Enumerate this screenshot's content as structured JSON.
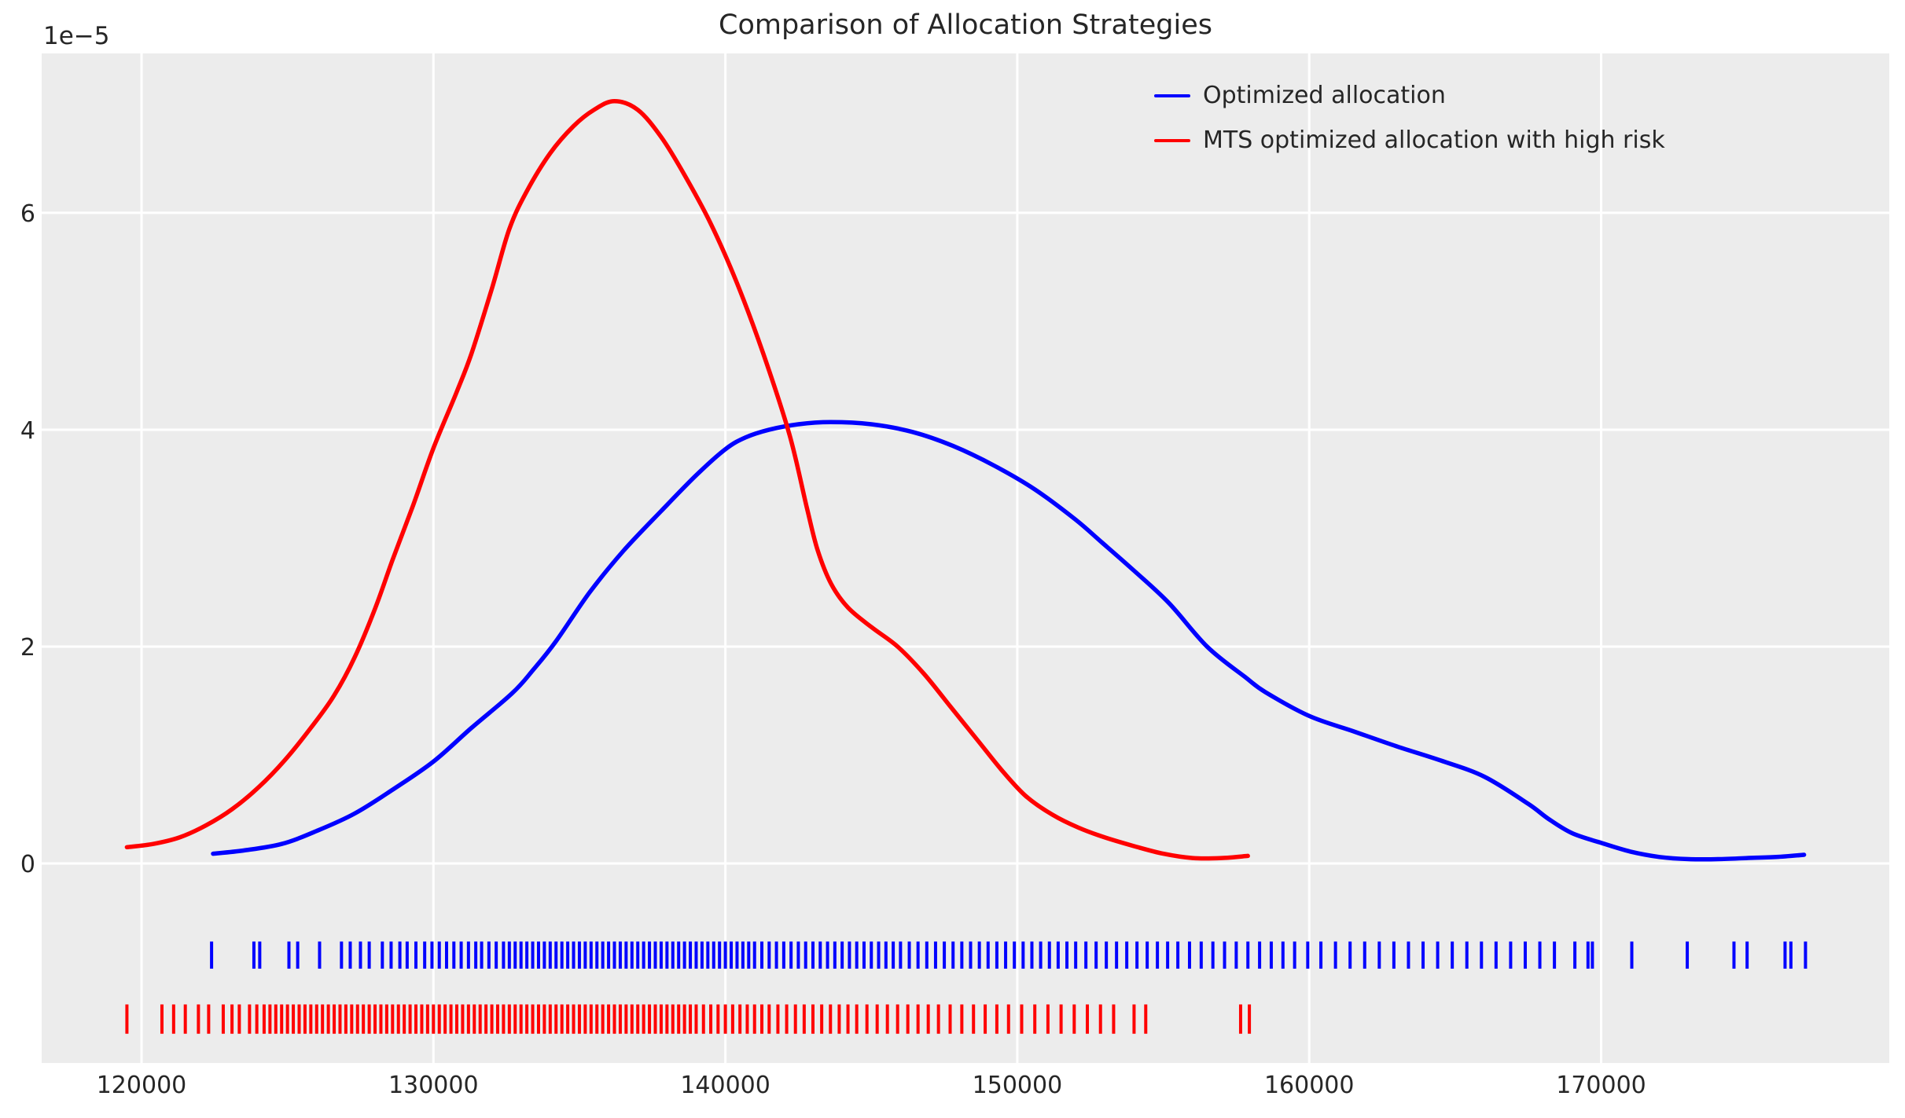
{
  "figure": {
    "background": "#ffffff",
    "plot_background": "#ececec",
    "grid_color": "#ffffff",
    "text_color": "#262626"
  },
  "chart_data": {
    "type": "line",
    "subtype": "kde-with-rug",
    "title": "Comparison of Allocation Strategies",
    "xlabel": "",
    "ylabel": "",
    "y_offset_text": "1e−5",
    "y_unit": "1e-5",
    "grid": true,
    "legend_position": "upper right",
    "x_ticks": [
      120000,
      130000,
      140000,
      150000,
      160000,
      170000
    ],
    "y_ticks": [
      0,
      2,
      4,
      6
    ],
    "x_range": [
      116580,
      179870
    ],
    "y_range_1e5": [
      -1.84,
      7.47
    ],
    "series": [
      {
        "name": "Optimized allocation",
        "color": "#0000ff",
        "points": [
          [
            122450,
            0.09
          ],
          [
            123500,
            0.12
          ],
          [
            124800,
            0.18
          ],
          [
            126000,
            0.3
          ],
          [
            127300,
            0.46
          ],
          [
            128600,
            0.68
          ],
          [
            130000,
            0.94
          ],
          [
            131300,
            1.25
          ],
          [
            132700,
            1.57
          ],
          [
            133400,
            1.78
          ],
          [
            134200,
            2.05
          ],
          [
            135350,
            2.5
          ],
          [
            136500,
            2.88
          ],
          [
            137800,
            3.25
          ],
          [
            139000,
            3.58
          ],
          [
            140000,
            3.82
          ],
          [
            140700,
            3.93
          ],
          [
            141500,
            4.0
          ],
          [
            142500,
            4.05
          ],
          [
            143600,
            4.07
          ],
          [
            145000,
            4.05
          ],
          [
            146400,
            3.98
          ],
          [
            147800,
            3.85
          ],
          [
            149200,
            3.67
          ],
          [
            150600,
            3.45
          ],
          [
            152000,
            3.17
          ],
          [
            152900,
            2.96
          ],
          [
            154000,
            2.7
          ],
          [
            155200,
            2.4
          ],
          [
            156500,
            2.0
          ],
          [
            157800,
            1.72
          ],
          [
            158500,
            1.58
          ],
          [
            160000,
            1.36
          ],
          [
            161500,
            1.22
          ],
          [
            163000,
            1.08
          ],
          [
            164500,
            0.95
          ],
          [
            166000,
            0.8
          ],
          [
            167500,
            0.55
          ],
          [
            168200,
            0.41
          ],
          [
            169000,
            0.28
          ],
          [
            170000,
            0.19
          ],
          [
            171000,
            0.11
          ],
          [
            172000,
            0.06
          ],
          [
            173000,
            0.04
          ],
          [
            174000,
            0.04
          ],
          [
            175000,
            0.05
          ],
          [
            176000,
            0.06
          ],
          [
            176950,
            0.08
          ]
        ],
        "rug_band_1e5": [
          -0.72,
          -0.97
        ],
        "rug": [
          122400,
          123850,
          124050,
          125050,
          125350,
          126100,
          126850,
          127150,
          127500,
          127800,
          128250,
          128550,
          128850,
          129100,
          129400,
          129700,
          129950,
          130200,
          130450,
          130700,
          130950,
          131200,
          131450,
          131650,
          131900,
          132150,
          132400,
          132600,
          132800,
          133000,
          133200,
          133400,
          133600,
          133800,
          134000,
          134200,
          134400,
          134600,
          134800,
          135000,
          135200,
          135400,
          135600,
          135800,
          136000,
          136200,
          136400,
          136600,
          136800,
          137000,
          137200,
          137400,
          137600,
          137800,
          138000,
          138200,
          138400,
          138600,
          138800,
          139000,
          139200,
          139400,
          139600,
          139800,
          140000,
          140200,
          140400,
          140600,
          140800,
          141000,
          141250,
          141500,
          141750,
          142000,
          142250,
          142500,
          142750,
          143000,
          143250,
          143500,
          143750,
          144000,
          144250,
          144500,
          144750,
          145000,
          145250,
          145500,
          145750,
          146000,
          146300,
          146600,
          146900,
          147200,
          147500,
          147800,
          148100,
          148400,
          148700,
          149000,
          149300,
          149600,
          149900,
          150200,
          150500,
          150800,
          151100,
          151400,
          151700,
          152000,
          152350,
          152700,
          153050,
          153400,
          153750,
          154100,
          154450,
          154800,
          155150,
          155500,
          155900,
          156300,
          156700,
          157100,
          157500,
          157900,
          158300,
          158700,
          159100,
          159500,
          159950,
          160400,
          160900,
          161400,
          161900,
          162400,
          162900,
          163400,
          163900,
          164400,
          164900,
          165400,
          165900,
          166400,
          166900,
          167400,
          167900,
          168400,
          169100,
          169550,
          169700,
          171050,
          172950,
          174550,
          175000,
          176300,
          176500,
          177000
        ]
      },
      {
        "name": "MTS optimized allocation with high risk",
        "color": "#ff0000",
        "points": [
          [
            119500,
            0.15
          ],
          [
            120400,
            0.18
          ],
          [
            121300,
            0.24
          ],
          [
            122200,
            0.35
          ],
          [
            123100,
            0.5
          ],
          [
            124000,
            0.7
          ],
          [
            124900,
            0.95
          ],
          [
            125800,
            1.25
          ],
          [
            126600,
            1.55
          ],
          [
            127300,
            1.9
          ],
          [
            128000,
            2.35
          ],
          [
            128600,
            2.8
          ],
          [
            129300,
            3.3
          ],
          [
            130000,
            3.83
          ],
          [
            130800,
            4.35
          ],
          [
            131300,
            4.7
          ],
          [
            132000,
            5.3
          ],
          [
            132600,
            5.85
          ],
          [
            133200,
            6.2
          ],
          [
            134000,
            6.55
          ],
          [
            134800,
            6.8
          ],
          [
            135500,
            6.95
          ],
          [
            136200,
            7.03
          ],
          [
            137000,
            6.95
          ],
          [
            137800,
            6.7
          ],
          [
            138600,
            6.35
          ],
          [
            139500,
            5.9
          ],
          [
            140400,
            5.35
          ],
          [
            141300,
            4.7
          ],
          [
            142200,
            3.95
          ],
          [
            142800,
            3.27
          ],
          [
            143160,
            2.89
          ],
          [
            143620,
            2.58
          ],
          [
            144200,
            2.36
          ],
          [
            145000,
            2.18
          ],
          [
            145900,
            2.0
          ],
          [
            146800,
            1.75
          ],
          [
            147700,
            1.45
          ],
          [
            148600,
            1.15
          ],
          [
            149500,
            0.85
          ],
          [
            150300,
            0.62
          ],
          [
            151200,
            0.45
          ],
          [
            152100,
            0.33
          ],
          [
            153000,
            0.24
          ],
          [
            154000,
            0.16
          ],
          [
            155000,
            0.09
          ],
          [
            156000,
            0.05
          ],
          [
            157000,
            0.05
          ],
          [
            157900,
            0.07
          ]
        ],
        "rug_band_1e5": [
          -1.3,
          -1.57
        ],
        "rug": [
          119500,
          120700,
          121100,
          121500,
          121950,
          122300,
          122800,
          123100,
          123350,
          123700,
          123950,
          124200,
          124400,
          124600,
          124800,
          125000,
          125200,
          125400,
          125600,
          125800,
          126000,
          126200,
          126400,
          126600,
          126800,
          127000,
          127200,
          127400,
          127600,
          127800,
          128000,
          128200,
          128400,
          128600,
          128800,
          129000,
          129200,
          129400,
          129600,
          129800,
          130000,
          130200,
          130400,
          130600,
          130800,
          131000,
          131200,
          131400,
          131600,
          131800,
          132000,
          132200,
          132400,
          132600,
          132800,
          133000,
          133200,
          133400,
          133600,
          133800,
          134000,
          134200,
          134400,
          134600,
          134800,
          135000,
          135200,
          135400,
          135600,
          135800,
          136000,
          136200,
          136400,
          136600,
          136800,
          137000,
          137200,
          137400,
          137600,
          137800,
          138000,
          138200,
          138400,
          138600,
          138800,
          139000,
          139250,
          139500,
          139750,
          140000,
          140250,
          140500,
          140750,
          141000,
          141250,
          141500,
          141800,
          142100,
          142400,
          142700,
          143000,
          143300,
          143600,
          143900,
          144200,
          144500,
          144850,
          145200,
          145550,
          145900,
          146250,
          146600,
          146950,
          147300,
          147700,
          148100,
          148500,
          148900,
          149300,
          149700,
          150150,
          150600,
          151050,
          151500,
          151950,
          152400,
          152850,
          153300,
          154000,
          154400,
          157650,
          157950
        ]
      }
    ]
  }
}
